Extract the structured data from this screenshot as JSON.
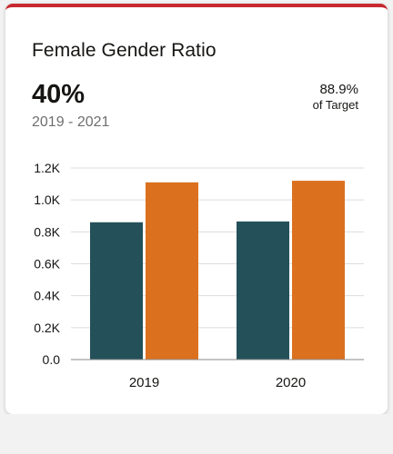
{
  "card": {
    "title": "Female Gender Ratio",
    "kpi_value": "40%",
    "period": "2019 - 2021",
    "target_pct": "88.9%",
    "target_label": "of Target"
  },
  "colors": {
    "accent_top_border": "#c8282f",
    "series_1": "#245159",
    "series_2": "#db711f"
  },
  "chart_data": {
    "type": "bar",
    "categories": [
      "2019",
      "2020"
    ],
    "series": [
      {
        "values": [
          860,
          865
        ]
      },
      {
        "values": [
          1110,
          1120
        ]
      }
    ],
    "yticks": [
      "0.0",
      "0.2K",
      "0.4K",
      "0.6K",
      "0.8K",
      "1.0K",
      "1.2K"
    ],
    "ylim": [
      0,
      1200
    ],
    "grid": true,
    "legend": "none"
  }
}
